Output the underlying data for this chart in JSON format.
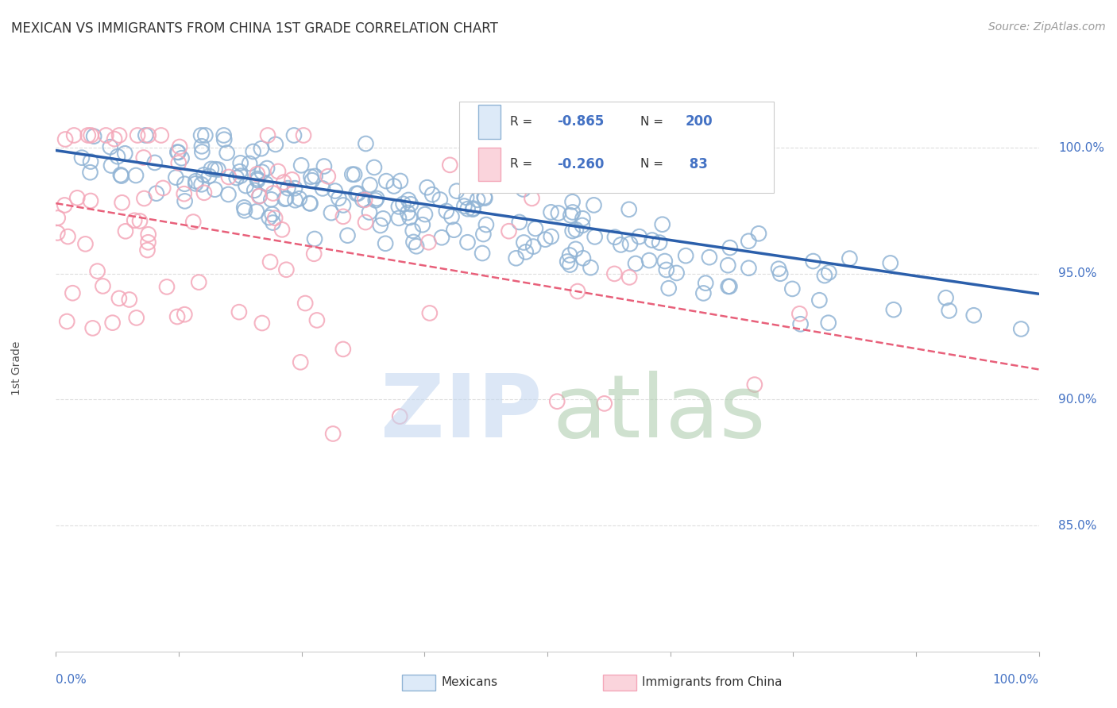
{
  "title": "MEXICAN VS IMMIGRANTS FROM CHINA 1ST GRADE CORRELATION CHART",
  "source": "Source: ZipAtlas.com",
  "ylabel": "1st Grade",
  "right_yticks": [
    0.85,
    0.9,
    0.95,
    1.0
  ],
  "right_ytick_labels": [
    "85.0%",
    "90.0%",
    "95.0%",
    "100.0%"
  ],
  "ylim": [
    0.8,
    1.025
  ],
  "xlim": [
    0.0,
    1.0
  ],
  "blue_R": -0.865,
  "blue_N": 200,
  "pink_R": -0.26,
  "pink_N": 83,
  "blue_color": "#91B4D5",
  "blue_line_color": "#2B5FAB",
  "pink_color": "#F4A7B9",
  "pink_line_color": "#E8607A",
  "background_color": "#FFFFFF",
  "grid_color": "#DDDDDD",
  "title_color": "#333333",
  "axis_label_color": "#4472C4",
  "legend_R_color": "#4472C4",
  "blue_line_start_x": 0.0,
  "blue_line_start_y": 0.999,
  "blue_line_end_x": 1.0,
  "blue_line_end_y": 0.942,
  "pink_line_start_x": 0.0,
  "pink_line_start_y": 0.978,
  "pink_line_end_x": 1.0,
  "pink_line_end_y": 0.912,
  "seed": 42
}
